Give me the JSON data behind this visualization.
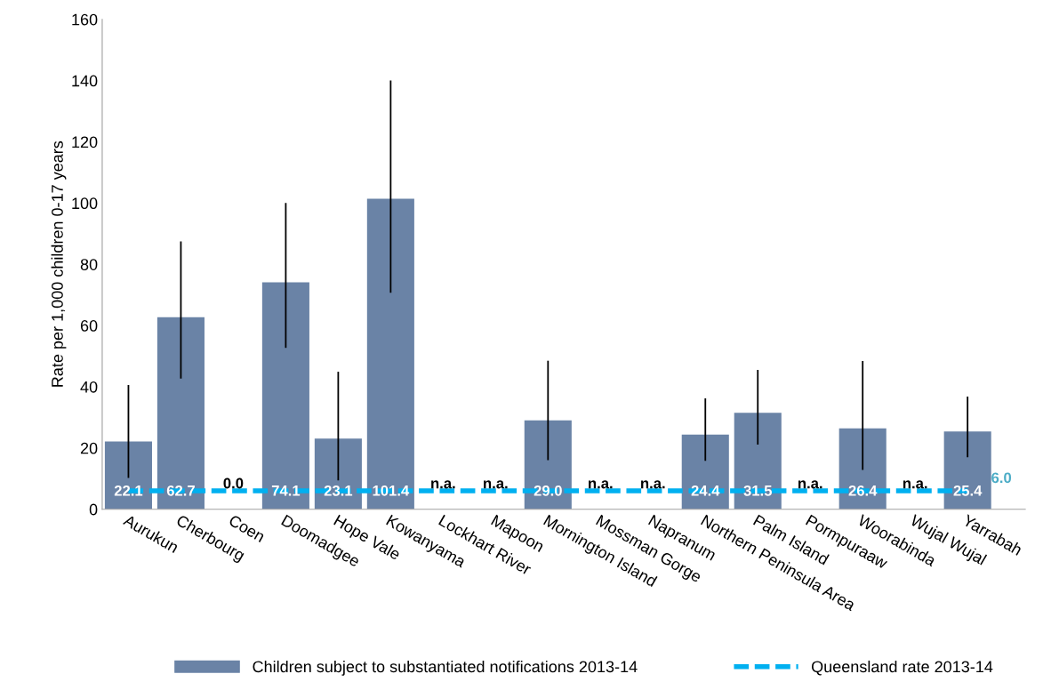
{
  "chart_data": {
    "type": "bar",
    "ylabel": "Rate per 1,000 children 0-17 years",
    "categories": [
      "Aurukun",
      "Cherbourg",
      "Coen",
      "Doomadgee",
      "Hope Vale",
      "Kowanyama",
      "Lockhart River",
      "Mapoon",
      "Mornington Island",
      "Mossman Gorge",
      "Napranum",
      "Northern Peninsula Area",
      "Palm Island",
      "Pormpuraaw",
      "Woorabinda",
      "Wujal Wujal",
      "Yarrabah"
    ],
    "series": [
      {
        "name": "Children subject to substantiated notifications 2013-14",
        "color": "#6a83a6",
        "values": [
          22.1,
          62.7,
          0.0,
          74.1,
          23.1,
          101.4,
          null,
          null,
          29.0,
          null,
          null,
          24.4,
          31.5,
          null,
          26.4,
          null,
          25.4
        ],
        "errors": [
          [
            10.2,
            40.6
          ],
          [
            42.7,
            87.5
          ],
          null,
          [
            52.7,
            100.0
          ],
          [
            9.4,
            44.9
          ],
          [
            70.7,
            140.0
          ],
          null,
          null,
          [
            16.0,
            48.5
          ],
          null,
          null,
          [
            15.8,
            36.2
          ],
          [
            21.1,
            45.5
          ],
          null,
          [
            12.8,
            48.4
          ],
          null,
          [
            17.0,
            36.8
          ]
        ],
        "value_labels": [
          "22.1",
          "62.7",
          "0.0",
          "74.1",
          "23.1",
          "101.4",
          "n.a.",
          "n.a.",
          "29.0",
          "n.a.",
          "n.a.",
          "24.4",
          "31.5",
          "n.a.",
          "26.4",
          "n.a.",
          "25.4"
        ]
      },
      {
        "name": "Queensland rate 2013-14",
        "type": "line",
        "color": "#00b0f0",
        "line_style": "dashed",
        "values": [
          6.0,
          6.0,
          6.0,
          6.0,
          6.0,
          6.0,
          6.0,
          6.0,
          6.0,
          6.0,
          6.0,
          6.0,
          6.0,
          6.0,
          6.0,
          6.0,
          6.0
        ],
        "value_labels": [
          null,
          null,
          null,
          null,
          null,
          null,
          null,
          null,
          null,
          null,
          null,
          null,
          null,
          null,
          null,
          null,
          "6.0"
        ]
      }
    ],
    "ylim": [
      0,
      160
    ],
    "yticks": [
      0,
      20,
      40,
      60,
      80,
      100,
      120,
      140,
      160
    ],
    "grid": false,
    "legend": "bottom"
  }
}
